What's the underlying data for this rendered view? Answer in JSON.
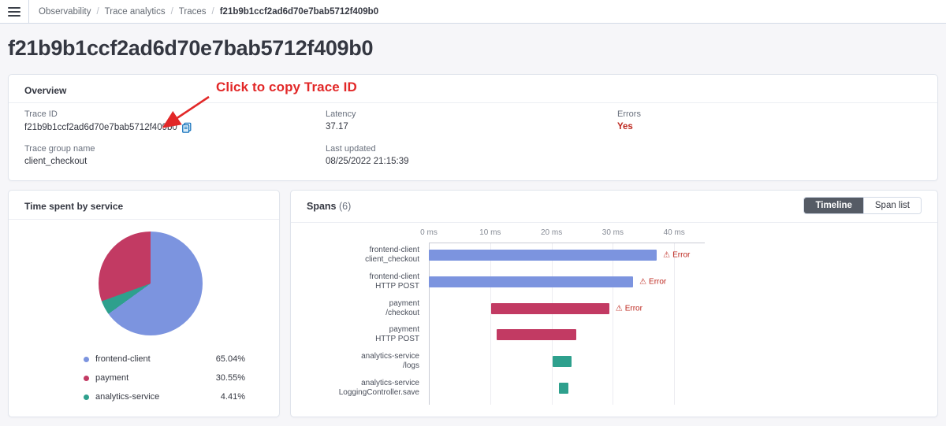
{
  "topnav": {
    "breadcrumbs": [
      "Observability",
      "Trace analytics",
      "Traces",
      "f21b9b1ccf2ad6d70e7bab5712f409b0"
    ]
  },
  "page": {
    "title": "f21b9b1ccf2ad6d70e7bab5712f409b0"
  },
  "annotation": {
    "text": "Click to copy Trace ID",
    "color": "#e22828"
  },
  "overview": {
    "heading": "Overview",
    "trace_id": {
      "label": "Trace ID",
      "value": "f21b9b1ccf2ad6d70e7bab5712f409b0",
      "copy_icon": "copy-icon",
      "copy_icon_color": "#0a6cb9"
    },
    "latency": {
      "label": "Latency",
      "value": "37.17"
    },
    "errors": {
      "label": "Errors",
      "value": "Yes",
      "value_color": "#bd271e"
    },
    "trace_group": {
      "label": "Trace group name",
      "value": "client_checkout"
    },
    "last_updated": {
      "label": "Last updated",
      "value": "08/25/2022 21:15:39"
    }
  },
  "pie_panel": {
    "title": "Time spent by service"
  },
  "spans_panel": {
    "title": "Spans",
    "count": "(6)",
    "view_buttons": [
      {
        "label": "Timeline",
        "selected": true
      },
      {
        "label": "Span list",
        "selected": false
      }
    ]
  },
  "chart_data": [
    {
      "type": "pie",
      "title": "Time spent by service",
      "labels": [
        "frontend-client",
        "payment",
        "analytics-service"
      ],
      "values": [
        65.04,
        30.55,
        4.41
      ],
      "value_labels": [
        "65.04%",
        "30.55%",
        "4.41%"
      ],
      "colors": [
        "#7c94df",
        "#c23a63",
        "#2ea08d"
      ],
      "draw_order": [
        0,
        2,
        1
      ],
      "legend_position": "bottom"
    },
    {
      "type": "bar",
      "orientation": "horizontal-timeline",
      "title": "Spans (6)",
      "xlabel_ticks": [
        "0 ms",
        "10 ms",
        "20 ms",
        "30 ms",
        "40 ms"
      ],
      "tick_values": [
        0,
        10,
        20,
        30,
        40
      ],
      "xlim": [
        0,
        45
      ],
      "grid": true,
      "service_colors": {
        "frontend-client": "#7c94df",
        "payment": "#c23a63",
        "analytics-service": "#2ea08d"
      },
      "error_label": "Error",
      "warning_glyph": "⚠",
      "bars": [
        {
          "service": "frontend-client",
          "operation": "client_checkout",
          "start": 0,
          "end": 37.17,
          "error": true
        },
        {
          "service": "frontend-client",
          "operation": "HTTP POST",
          "start": 0,
          "end": 33.3,
          "error": true
        },
        {
          "service": "payment",
          "operation": "/checkout",
          "start": 10.2,
          "end": 29.4,
          "error": true
        },
        {
          "service": "payment",
          "operation": "HTTP POST",
          "start": 11.0,
          "end": 24.0,
          "error": false
        },
        {
          "service": "analytics-service",
          "operation": "/logs",
          "start": 20.2,
          "end": 23.3,
          "error": false
        },
        {
          "service": "analytics-service",
          "operation": "LoggingController.save",
          "start": 21.2,
          "end": 22.8,
          "error": false
        }
      ]
    }
  ]
}
